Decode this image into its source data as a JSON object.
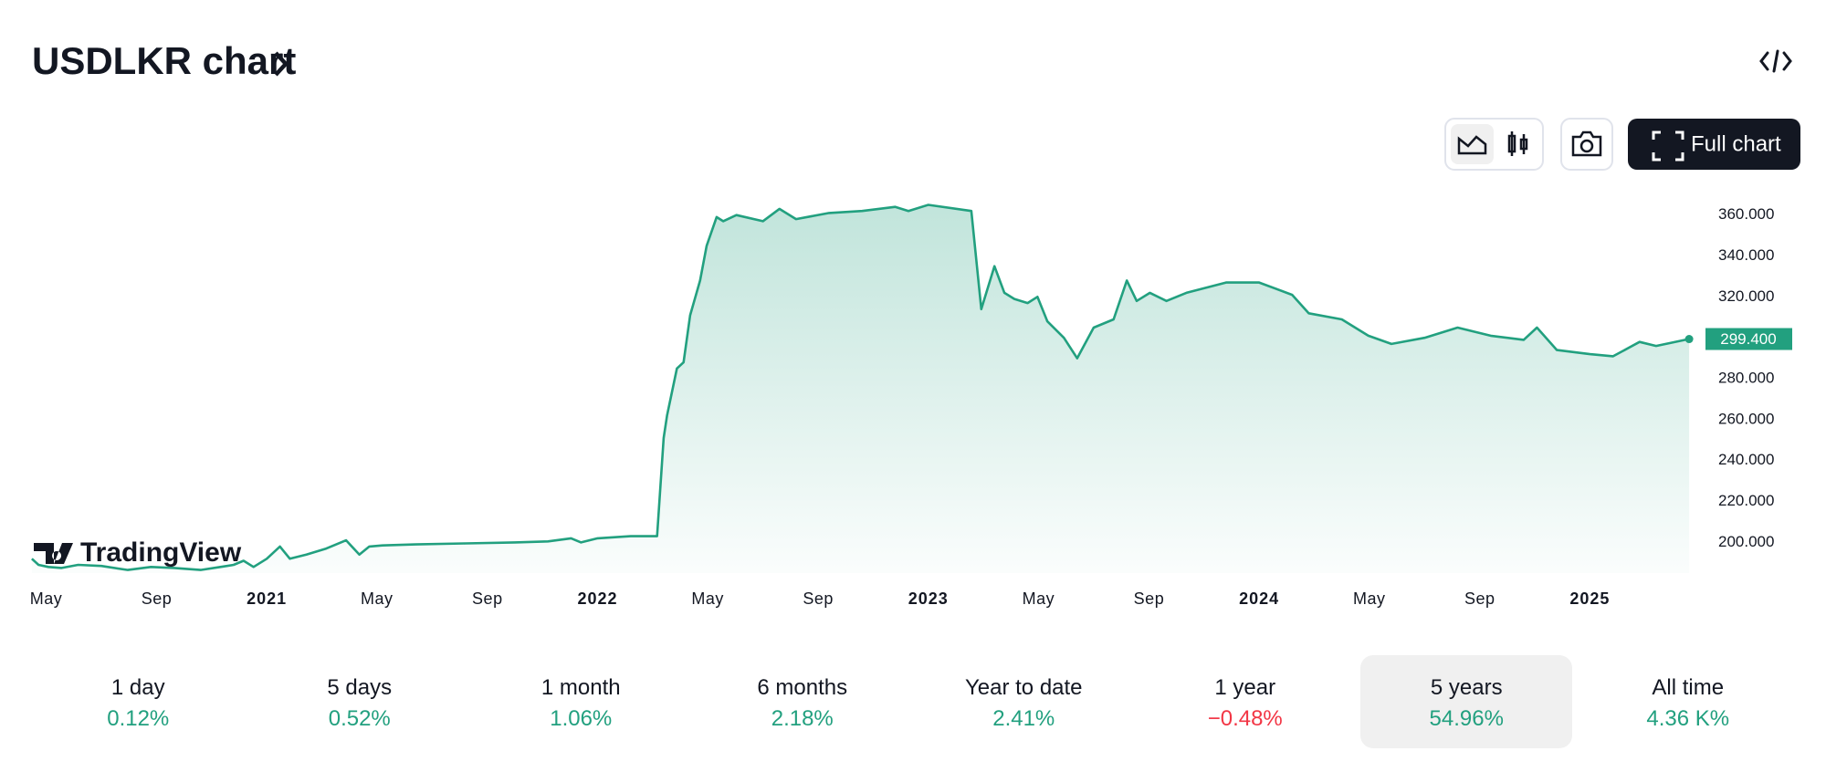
{
  "header": {
    "title": "USDLKR chart",
    "full_chart_button": "Full chart"
  },
  "chart_data": {
    "type": "area",
    "watermark": "TradingView",
    "x": [
      2020.29,
      2020.31,
      2020.34,
      2020.38,
      2020.43,
      2020.5,
      2020.58,
      2020.65,
      2020.72,
      2020.8,
      2020.86,
      2020.9,
      2020.93,
      2020.96,
      2021.0,
      2021.04,
      2021.07,
      2021.12,
      2021.18,
      2021.24,
      2021.28,
      2021.31,
      2021.35,
      2021.45,
      2021.6,
      2021.75,
      2021.85,
      2021.92,
      2021.95,
      2022.0,
      2022.1,
      2022.18,
      2022.2,
      2022.21,
      2022.24,
      2022.26,
      2022.28,
      2022.31,
      2022.33,
      2022.36,
      2022.38,
      2022.42,
      2022.5,
      2022.55,
      2022.6,
      2022.7,
      2022.8,
      2022.9,
      2022.94,
      2023.0,
      2023.13,
      2023.16,
      2023.2,
      2023.23,
      2023.26,
      2023.3,
      2023.33,
      2023.36,
      2023.41,
      2023.45,
      2023.5,
      2023.56,
      2023.6,
      2023.63,
      2023.67,
      2023.72,
      2023.78,
      2023.9,
      2024.0,
      2024.1,
      2024.15,
      2024.25,
      2024.33,
      2024.4,
      2024.5,
      2024.6,
      2024.7,
      2024.8,
      2024.84,
      2024.9,
      2025.0,
      2025.07,
      2025.15,
      2025.2,
      2025.3
    ],
    "series": [
      {
        "name": "USDLKR",
        "color": "#22a07f",
        "values": [
          192,
          189,
          188,
          187.5,
          189,
          188.5,
          186.5,
          188,
          187.5,
          186.5,
          188,
          189,
          191,
          188,
          192,
          198,
          192,
          194,
          197,
          201,
          194,
          198,
          198.5,
          199,
          199.5,
          200,
          200.5,
          202,
          200,
          202,
          203,
          203,
          251,
          262,
          285,
          288,
          311,
          328,
          345,
          359,
          357,
          360,
          357,
          363,
          358,
          361,
          362,
          364,
          362,
          365,
          362,
          314,
          335,
          322,
          319,
          317,
          320,
          308,
          300,
          290,
          305,
          309,
          328,
          318,
          322,
          318,
          322,
          327,
          327,
          321,
          312,
          309,
          301,
          297,
          300,
          305,
          301,
          299,
          305,
          294,
          292,
          291,
          298,
          296,
          299.4
        ]
      }
    ],
    "last_price_label": "299.400",
    "xlim": [
      2020.293,
      2025.308
    ],
    "ylim": [
      185,
      371
    ],
    "xticks": [
      {
        "value": 2020.333,
        "label": "May"
      },
      {
        "value": 2020.667,
        "label": "Sep"
      },
      {
        "value": 2021,
        "label": "2021"
      },
      {
        "value": 2021.333,
        "label": "May"
      },
      {
        "value": 2021.667,
        "label": "Sep"
      },
      {
        "value": 2022,
        "label": "2022"
      },
      {
        "value": 2022.333,
        "label": "May"
      },
      {
        "value": 2022.667,
        "label": "Sep"
      },
      {
        "value": 2023,
        "label": "2023"
      },
      {
        "value": 2023.333,
        "label": "May"
      },
      {
        "value": 2023.667,
        "label": "Sep"
      },
      {
        "value": 2024,
        "label": "2024"
      },
      {
        "value": 2024.333,
        "label": "May"
      },
      {
        "value": 2024.667,
        "label": "Sep"
      },
      {
        "value": 2025,
        "label": "2025"
      }
    ],
    "yticks": [
      {
        "value": 200,
        "label": "200.000"
      },
      {
        "value": 220,
        "label": "220.000"
      },
      {
        "value": 240,
        "label": "240.000"
      },
      {
        "value": 260,
        "label": "260.000"
      },
      {
        "value": 280,
        "label": "280.000"
      },
      {
        "value": 300,
        "label": "300.000"
      },
      {
        "value": 320,
        "label": "320.000"
      },
      {
        "value": 340,
        "label": "340.000"
      },
      {
        "value": 360,
        "label": "360.000"
      }
    ],
    "grid": false
  },
  "periods": [
    {
      "label": "1 day",
      "value": "0.12%",
      "color": "#22a07f"
    },
    {
      "label": "5 days",
      "value": "0.52%",
      "color": "#22a07f"
    },
    {
      "label": "1 month",
      "value": "1.06%",
      "color": "#22a07f"
    },
    {
      "label": "6 months",
      "value": "2.18%",
      "color": "#22a07f"
    },
    {
      "label": "Year to date",
      "value": "2.41%",
      "color": "#22a07f"
    },
    {
      "label": "1 year",
      "value": "−0.48%",
      "color": "#f23645"
    },
    {
      "label": "5 years",
      "value": "54.96%",
      "color": "#22a07f",
      "active": true
    },
    {
      "label": "All time",
      "value": "4.36 K%",
      "color": "#22a07f"
    }
  ]
}
